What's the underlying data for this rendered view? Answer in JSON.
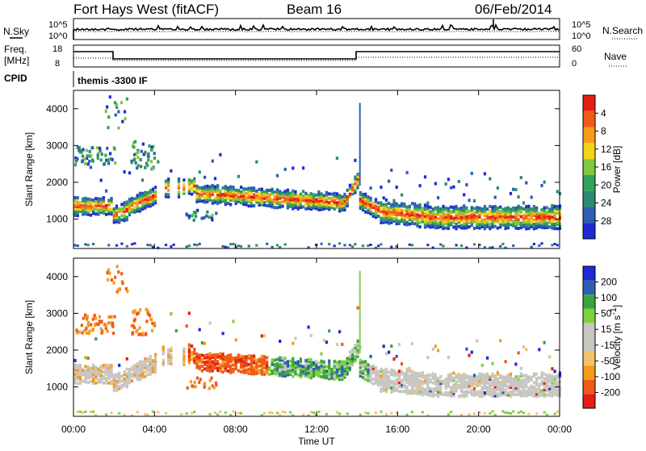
{
  "header": {
    "station": "Fort Hays West (fitACF)",
    "beam": "Beam 16",
    "date": "06/Feb/2014"
  },
  "noise_panel": {
    "left_label": "N.Sky",
    "right_label": "N.Search",
    "left_ticks": [
      "10^5",
      "10^0"
    ],
    "right_ticks": [
      "10^5",
      "10^0"
    ]
  },
  "freq_panel": {
    "left_label_1": "Freq.",
    "left_label_2": "[MHz]",
    "right_label": "Nave",
    "left_ticks": [
      "18",
      "8"
    ],
    "right_ticks": [
      "60",
      "0"
    ],
    "cpid_label": "CPID",
    "cpid_text": "themis -3300 IF"
  },
  "colors": {
    "power_scale": [
      "#1e2ad6",
      "#2c5fb0",
      "#2e8a6e",
      "#2fa35a",
      "#7ec93c",
      "#f4d21a",
      "#f59a1b",
      "#ef5a17",
      "#e41e12"
    ],
    "velocity_scale": [
      "#e41e12",
      "#ef5a17",
      "#f59a1b",
      "#f2c36b",
      "#c8c6c0",
      "#c8c6c0",
      "#7ed13d",
      "#3aa53d",
      "#2c5fb0",
      "#1e2ad6"
    ]
  },
  "chart_data": [
    {
      "type": "heatmap",
      "name": "power-panel",
      "ylabel": "Slant Range [km]",
      "yticks": [
        "1000",
        "2000",
        "3000",
        "4000"
      ],
      "ylim": [
        200,
        4500
      ],
      "xlim": [
        0,
        24
      ],
      "colorbar": {
        "label": "Power [dB]",
        "ticks": [
          "4",
          "8",
          "12",
          "16",
          "20",
          "24",
          "28"
        ]
      }
    },
    {
      "type": "heatmap",
      "name": "velocity-panel",
      "ylabel": "Slant Range [km]",
      "yticks": [
        "1000",
        "2000",
        "3000",
        "4000"
      ],
      "ylim": [
        200,
        4500
      ],
      "xlim": [
        0,
        24
      ],
      "colorbar": {
        "label": "Velocity [m s",
        "label_sup": "-1",
        "label_end": "]",
        "ticks": [
          "200",
          "100",
          "50",
          "15",
          "-15",
          "-50",
          "-100",
          "-200"
        ]
      }
    }
  ],
  "xaxis": {
    "label": "Time UT",
    "ticks": [
      "00:00",
      "04:00",
      "08:00",
      "12:00",
      "16:00",
      "20:00",
      "00:00"
    ]
  }
}
